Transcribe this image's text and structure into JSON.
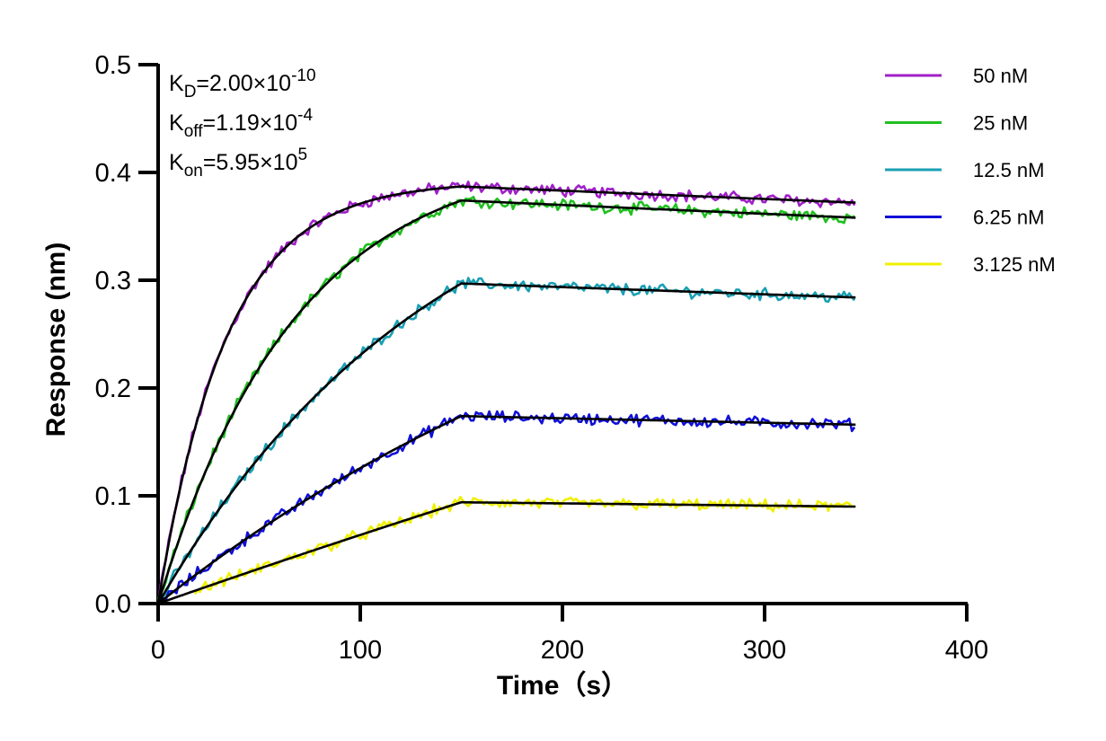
{
  "chart_data": {
    "type": "line",
    "xlabel": "Time（s）",
    "ylabel": "Response (nm)",
    "xlim": [
      0,
      400
    ],
    "ylim": [
      0,
      0.5
    ],
    "x_ticks": [
      "0",
      "100",
      "200",
      "300",
      "400"
    ],
    "y_ticks": [
      "0.0",
      "0.1",
      "0.2",
      "0.3",
      "0.4",
      "0.5"
    ],
    "grid": false,
    "legend_position": "top-right",
    "annotations": [
      {
        "main": "K",
        "sub": "D",
        "value": "=2.00×10",
        "sup": "-10"
      },
      {
        "main": "K",
        "sub": "off",
        "value": "=1.19×10",
        "sup": "-4"
      },
      {
        "main": "K",
        "sub": "on",
        "value": "=5.95×10",
        "sup": "5"
      }
    ],
    "series": [
      {
        "name": "50 nM",
        "color": "#a020c8",
        "fit_peak": 0.387,
        "fit_end": 0.372,
        "tau": 34
      },
      {
        "name": "25 nM",
        "color": "#20c020",
        "fit_peak": 0.374,
        "fit_end": 0.358,
        "tau": 68
      },
      {
        "name": "12.5 nM",
        "color": "#1aa0b4",
        "fit_peak": 0.297,
        "fit_end": 0.284,
        "tau": 140
      },
      {
        "name": "6.25 nM",
        "color": "#1010d8",
        "fit_peak": 0.174,
        "fit_end": 0.166,
        "tau": 290
      },
      {
        "name": "3.125 nM",
        "color": "#f0f000",
        "fit_peak": 0.094,
        "fit_end": 0.09,
        "tau": 1500
      }
    ],
    "fit_line_color": "#000000",
    "association_end_x": 150,
    "dissociation_end_x": 345
  }
}
